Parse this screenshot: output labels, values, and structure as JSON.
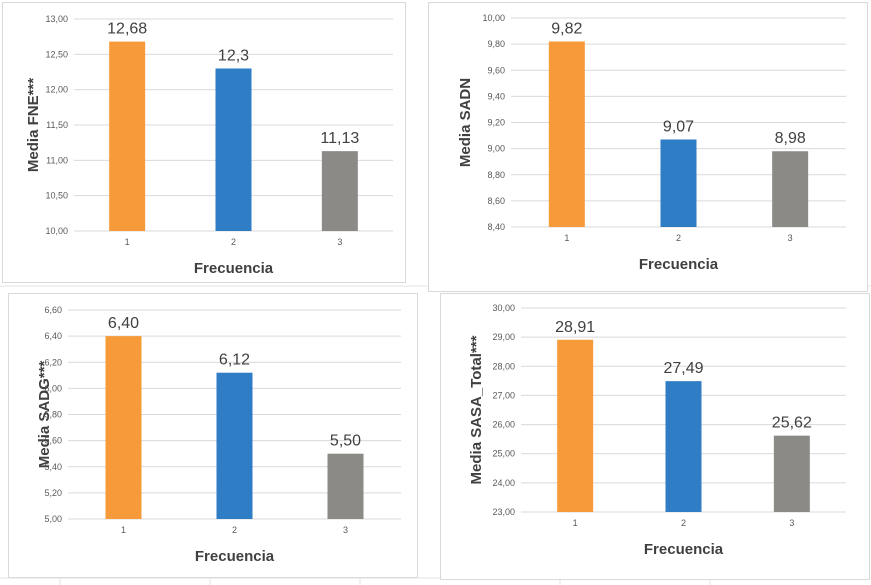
{
  "chart_data": [
    {
      "type": "bar",
      "categories": [
        "1",
        "2",
        "3"
      ],
      "values": [
        12.68,
        12.3,
        11.13
      ],
      "value_labels": [
        "12,68",
        "12,3",
        "11,13"
      ],
      "colors": [
        "#f79a3a",
        "#2f7dc4",
        "#8c8a87"
      ],
      "ylabel": "Media FNE***",
      "xlabel": "Frecuencia",
      "ylim": [
        10,
        13
      ],
      "yticks": [
        10,
        10.5,
        11,
        11.5,
        12,
        12.5,
        13
      ],
      "ytick_labels": [
        "10,00",
        "10,50",
        "11,00",
        "11,50",
        "12,00",
        "12,50",
        "13,00"
      ],
      "grid": true
    },
    {
      "type": "bar",
      "categories": [
        "1",
        "2",
        "3"
      ],
      "values": [
        9.82,
        9.07,
        8.98
      ],
      "value_labels": [
        "9,82",
        "9,07",
        "8,98"
      ],
      "colors": [
        "#f79a3a",
        "#2f7dc4",
        "#8c8a87"
      ],
      "ylabel": "Media SADN",
      "xlabel": "Frecuencia",
      "ylim": [
        8.4,
        10
      ],
      "yticks": [
        8.4,
        8.6,
        8.8,
        9.0,
        9.2,
        9.4,
        9.6,
        9.8,
        10.0
      ],
      "ytick_labels": [
        "8,40",
        "8,60",
        "8,80",
        "9,00",
        "9,20",
        "9,40",
        "9,60",
        "9,80",
        "10,00"
      ],
      "grid": true
    },
    {
      "type": "bar",
      "categories": [
        "1",
        "2",
        "3"
      ],
      "values": [
        6.4,
        6.12,
        5.5
      ],
      "value_labels": [
        "6,40",
        "6,12",
        "5,50"
      ],
      "colors": [
        "#f79a3a",
        "#2f7dc4",
        "#8c8a87"
      ],
      "ylabel": "Media SADG***",
      "xlabel": "Frecuencia",
      "ylim": [
        5,
        6.6
      ],
      "yticks": [
        5.0,
        5.2,
        5.4,
        5.6,
        5.8,
        6.0,
        6.2,
        6.4,
        6.6
      ],
      "ytick_labels": [
        "5,00",
        "5,20",
        "5,40",
        "5,60",
        "5,80",
        "6,00",
        "6,20",
        "6,40",
        "6,60"
      ],
      "grid": true
    },
    {
      "type": "bar",
      "categories": [
        "1",
        "2",
        "3"
      ],
      "values": [
        28.91,
        27.49,
        25.62
      ],
      "value_labels": [
        "28,91",
        "27,49",
        "25,62"
      ],
      "colors": [
        "#f79a3a",
        "#2f7dc4",
        "#8c8a87"
      ],
      "ylabel": "Media SASA_Total***",
      "xlabel": "Frecuencia",
      "ylim": [
        23,
        30
      ],
      "yticks": [
        23,
        24,
        25,
        26,
        27,
        28,
        29,
        30
      ],
      "ytick_labels": [
        "23,00",
        "24,00",
        "25,00",
        "26,00",
        "27,00",
        "28,00",
        "29,00",
        "30,00"
      ],
      "grid": true
    }
  ]
}
